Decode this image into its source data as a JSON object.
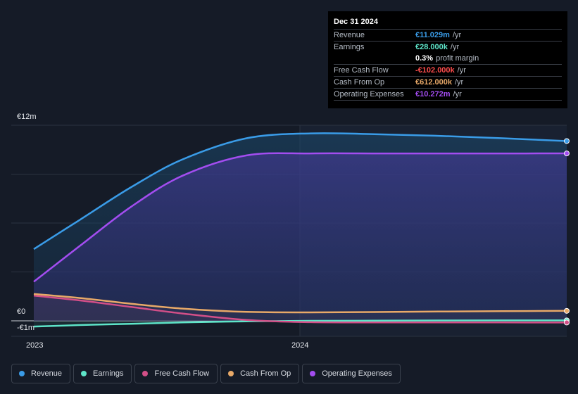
{
  "chart_data": {
    "type": "area",
    "x_ticks": [
      "2023",
      "2024"
    ],
    "y_ticks": [
      "€12m",
      "€0",
      "-€1m"
    ],
    "ylim": [
      -1,
      12
    ],
    "grid": true,
    "legend_position": "bottom-left",
    "x": [
      2022.92,
      2023.1,
      2023.3,
      2023.5,
      2023.75,
      2024.0,
      2024.25,
      2024.5,
      2024.75,
      2025.0
    ],
    "series": [
      {
        "name": "Revenue",
        "color": "#3a9ce8",
        "values": [
          4.4,
          6.2,
          8.2,
          9.9,
          11.2,
          11.5,
          11.45,
          11.35,
          11.2,
          11.03
        ]
      },
      {
        "name": "Earnings",
        "color": "#5ee5c9",
        "values": [
          -0.35,
          -0.26,
          -0.18,
          -0.1,
          -0.03,
          0.0,
          0.01,
          0.02,
          0.025,
          0.028
        ]
      },
      {
        "name": "Free Cash Flow",
        "color": "#d34f88",
        "values": [
          1.55,
          1.25,
          0.85,
          0.45,
          0.05,
          -0.08,
          -0.1,
          -0.1,
          -0.1,
          -0.102
        ]
      },
      {
        "name": "Cash From Op",
        "color": "#e8a968",
        "values": [
          1.65,
          1.4,
          1.05,
          0.75,
          0.55,
          0.52,
          0.54,
          0.57,
          0.59,
          0.612
        ]
      },
      {
        "name": "Operating Expenses",
        "color": "#a34df0",
        "values": [
          2.4,
          4.6,
          7.0,
          8.9,
          10.15,
          10.27,
          10.27,
          10.27,
          10.27,
          10.272
        ]
      }
    ]
  },
  "tooltip": {
    "date": "Dec 31 2024",
    "rows": [
      {
        "label": "Revenue",
        "value": "€11.029m",
        "unit": "/yr",
        "color": "#3a9ce8"
      },
      {
        "label": "Earnings",
        "value": "€28.000k",
        "unit": "/yr",
        "color": "#5ee5c9"
      },
      {
        "label": "",
        "value": "0.3%",
        "unit": "profit margin",
        "color": "#ffffff"
      },
      {
        "label": "Free Cash Flow",
        "value": "-€102.000k",
        "unit": "/yr",
        "color": "#ff4d4d"
      },
      {
        "label": "Cash From Op",
        "value": "€612.000k",
        "unit": "/yr",
        "color": "#e8a968"
      },
      {
        "label": "Operating Expenses",
        "value": "€10.272m",
        "unit": "/yr",
        "color": "#a34df0"
      }
    ]
  },
  "legend": [
    {
      "label": "Revenue",
      "color": "#3a9ce8"
    },
    {
      "label": "Earnings",
      "color": "#5ee5c9"
    },
    {
      "label": "Free Cash Flow",
      "color": "#d34f88"
    },
    {
      "label": "Cash From Op",
      "color": "#e8a968"
    },
    {
      "label": "Operating Expenses",
      "color": "#a34df0"
    }
  ]
}
